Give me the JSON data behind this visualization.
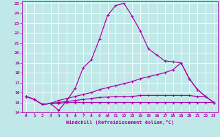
{
  "xlabel": "Windchill (Refroidissement éolien,°C)",
  "ylabel": "",
  "xlim": [
    -0.5,
    23.5
  ],
  "ylim": [
    14,
    25.2
  ],
  "xticks": [
    0,
    1,
    2,
    3,
    4,
    5,
    6,
    7,
    8,
    9,
    10,
    11,
    12,
    13,
    14,
    15,
    16,
    17,
    18,
    19,
    20,
    21,
    22,
    23
  ],
  "yticks": [
    14,
    15,
    16,
    17,
    18,
    19,
    20,
    21,
    22,
    23,
    24,
    25
  ],
  "background_color": "#c0e8e8",
  "line_color": "#aa00aa",
  "grid_color": "#ffffff",
  "line1_x": [
    0,
    1,
    2,
    3,
    4,
    5,
    6,
    7,
    8,
    9,
    10,
    11,
    12,
    13,
    14,
    15,
    16,
    17,
    18,
    19,
    20,
    21,
    22,
    23
  ],
  "line1_y": [
    15.6,
    15.3,
    14.8,
    14.9,
    14.2,
    15.2,
    16.4,
    18.5,
    19.3,
    21.4,
    23.8,
    24.8,
    25.0,
    23.7,
    22.2,
    20.4,
    19.8,
    19.2,
    19.1,
    19.0,
    17.4,
    16.3,
    15.6,
    15.0
  ],
  "line2_x": [
    0,
    1,
    2,
    3,
    4,
    5,
    6,
    7,
    8,
    9,
    10,
    11,
    12,
    13,
    14,
    15,
    16,
    17,
    18,
    19,
    20,
    21,
    22,
    23
  ],
  "line2_y": [
    15.6,
    15.3,
    14.8,
    14.9,
    15.2,
    15.4,
    15.6,
    15.8,
    16.0,
    16.3,
    16.5,
    16.7,
    16.9,
    17.1,
    17.4,
    17.6,
    17.8,
    18.0,
    18.3,
    19.0,
    17.4,
    16.3,
    15.6,
    15.0
  ],
  "line3_x": [
    0,
    1,
    2,
    3,
    4,
    5,
    6,
    7,
    8,
    9,
    10,
    11,
    12,
    13,
    14,
    15,
    16,
    17,
    18,
    19,
    20,
    21,
    22,
    23
  ],
  "line3_y": [
    15.6,
    15.3,
    14.8,
    14.9,
    15.0,
    15.1,
    15.2,
    15.3,
    15.4,
    15.5,
    15.55,
    15.6,
    15.6,
    15.6,
    15.7,
    15.7,
    15.7,
    15.7,
    15.7,
    15.7,
    15.7,
    15.6,
    15.6,
    15.0
  ],
  "line4_x": [
    0,
    1,
    2,
    3,
    4,
    5,
    6,
    7,
    8,
    9,
    10,
    11,
    12,
    13,
    14,
    15,
    16,
    17,
    18,
    19,
    20,
    21,
    22,
    23
  ],
  "line4_y": [
    15.6,
    15.3,
    14.8,
    14.9,
    14.9,
    15.0,
    15.0,
    15.0,
    15.0,
    15.0,
    15.0,
    15.0,
    15.0,
    15.0,
    15.0,
    15.0,
    15.0,
    15.0,
    15.0,
    15.0,
    15.0,
    15.0,
    15.0,
    15.0
  ]
}
